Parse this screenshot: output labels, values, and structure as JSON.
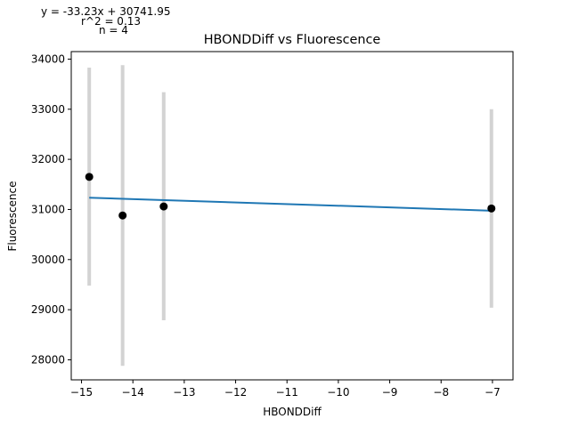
{
  "chart_data": {
    "type": "scatter",
    "title": "HBONDDiff vs Fluorescence",
    "xlabel": "HBONDDiff",
    "ylabel": "Fluorescence",
    "xlim": [
      -15.2,
      -6.6
    ],
    "ylim": [
      27600,
      34150
    ],
    "xticks": [
      -15,
      -14,
      -13,
      -12,
      -11,
      -10,
      -9,
      -8,
      -7
    ],
    "yticks": [
      28000,
      29000,
      30000,
      31000,
      32000,
      33000,
      34000
    ],
    "annotations": {
      "equation": "y = -33.23x + 30741.95",
      "r2": "r^2 = 0.13",
      "n": "n = 4"
    },
    "points": [
      {
        "x": -14.85,
        "y": 31650,
        "err_low": 29480,
        "err_high": 33830
      },
      {
        "x": -14.2,
        "y": 30880,
        "err_low": 27880,
        "err_high": 33880
      },
      {
        "x": -13.4,
        "y": 31060,
        "err_low": 28790,
        "err_high": 33340
      },
      {
        "x": -7.02,
        "y": 31020,
        "err_low": 29040,
        "err_high": 33000
      }
    ],
    "fit_line": {
      "slope": -33.23,
      "intercept": 30741.95,
      "x_range": [
        -14.85,
        -7.02
      ]
    },
    "colors": {
      "points": "#000000",
      "error_bars": "#d3d3d3",
      "fit": "#1f77b4"
    },
    "grid": false
  }
}
